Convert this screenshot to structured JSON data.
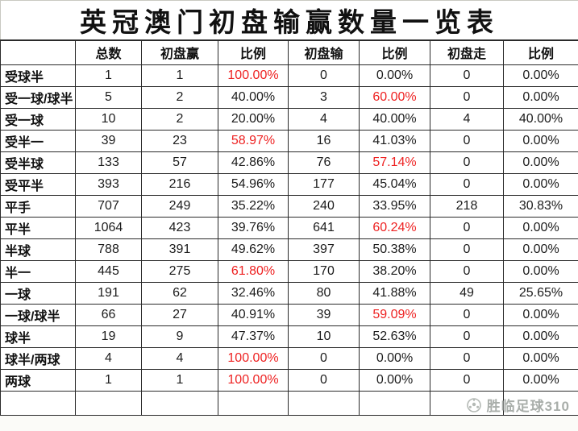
{
  "title": "英冠澳门初盘输赢数量一览表",
  "watermark": {
    "text": "胜临足球310",
    "icon": "soccer-ball-icon"
  },
  "colors": {
    "red": "#ee2222",
    "text": "#1c1c1c",
    "border": "#2a2a2a",
    "background": "#ffffff"
  },
  "chart_data": {
    "type": "table",
    "title": "英冠澳门初盘输赢数量一览表",
    "columns": [
      "",
      "总数",
      "初盘赢",
      "比例",
      "初盘输",
      "比例",
      "初盘走",
      "比例"
    ],
    "rows": [
      {
        "label": "受球半",
        "cells": [
          {
            "v": "1"
          },
          {
            "v": "1"
          },
          {
            "v": "100.00%",
            "red": true
          },
          {
            "v": "0"
          },
          {
            "v": "0.00%"
          },
          {
            "v": "0"
          },
          {
            "v": "0.00%"
          }
        ]
      },
      {
        "label": "受一球/球半",
        "cells": [
          {
            "v": "5"
          },
          {
            "v": "2"
          },
          {
            "v": "40.00%"
          },
          {
            "v": "3"
          },
          {
            "v": "60.00%",
            "red": true
          },
          {
            "v": "0"
          },
          {
            "v": "0.00%"
          }
        ]
      },
      {
        "label": "受一球",
        "cells": [
          {
            "v": "10"
          },
          {
            "v": "2"
          },
          {
            "v": "20.00%"
          },
          {
            "v": "4"
          },
          {
            "v": "40.00%"
          },
          {
            "v": "4"
          },
          {
            "v": "40.00%"
          }
        ]
      },
      {
        "label": "受半一",
        "cells": [
          {
            "v": "39"
          },
          {
            "v": "23"
          },
          {
            "v": "58.97%",
            "red": true
          },
          {
            "v": "16"
          },
          {
            "v": "41.03%"
          },
          {
            "v": "0"
          },
          {
            "v": "0.00%"
          }
        ]
      },
      {
        "label": "受半球",
        "cells": [
          {
            "v": "133"
          },
          {
            "v": "57"
          },
          {
            "v": "42.86%"
          },
          {
            "v": "76"
          },
          {
            "v": "57.14%",
            "red": true
          },
          {
            "v": "0"
          },
          {
            "v": "0.00%"
          }
        ]
      },
      {
        "label": "受平半",
        "cells": [
          {
            "v": "393"
          },
          {
            "v": "216"
          },
          {
            "v": "54.96%"
          },
          {
            "v": "177"
          },
          {
            "v": "45.04%"
          },
          {
            "v": "0"
          },
          {
            "v": "0.00%"
          }
        ]
      },
      {
        "label": "平手",
        "cells": [
          {
            "v": "707"
          },
          {
            "v": "249"
          },
          {
            "v": "35.22%"
          },
          {
            "v": "240"
          },
          {
            "v": "33.95%"
          },
          {
            "v": "218"
          },
          {
            "v": "30.83%"
          }
        ]
      },
      {
        "label": "平半",
        "cells": [
          {
            "v": "1064"
          },
          {
            "v": "423"
          },
          {
            "v": "39.76%"
          },
          {
            "v": "641"
          },
          {
            "v": "60.24%",
            "red": true
          },
          {
            "v": "0"
          },
          {
            "v": "0.00%"
          }
        ]
      },
      {
        "label": "半球",
        "cells": [
          {
            "v": "788"
          },
          {
            "v": "391"
          },
          {
            "v": "49.62%"
          },
          {
            "v": "397"
          },
          {
            "v": "50.38%"
          },
          {
            "v": "0"
          },
          {
            "v": "0.00%"
          }
        ]
      },
      {
        "label": "半一",
        "cells": [
          {
            "v": "445"
          },
          {
            "v": "275"
          },
          {
            "v": "61.80%",
            "red": true
          },
          {
            "v": "170"
          },
          {
            "v": "38.20%"
          },
          {
            "v": "0"
          },
          {
            "v": "0.00%"
          }
        ]
      },
      {
        "label": "一球",
        "cells": [
          {
            "v": "191"
          },
          {
            "v": "62"
          },
          {
            "v": "32.46%"
          },
          {
            "v": "80"
          },
          {
            "v": "41.88%"
          },
          {
            "v": "49"
          },
          {
            "v": "25.65%"
          }
        ]
      },
      {
        "label": "一球/球半",
        "cells": [
          {
            "v": "66"
          },
          {
            "v": "27"
          },
          {
            "v": "40.91%"
          },
          {
            "v": "39"
          },
          {
            "v": "59.09%",
            "red": true
          },
          {
            "v": "0"
          },
          {
            "v": "0.00%"
          }
        ]
      },
      {
        "label": "球半",
        "cells": [
          {
            "v": "19"
          },
          {
            "v": "9"
          },
          {
            "v": "47.37%"
          },
          {
            "v": "10"
          },
          {
            "v": "52.63%"
          },
          {
            "v": "0"
          },
          {
            "v": "0.00%"
          }
        ]
      },
      {
        "label": "球半/两球",
        "cells": [
          {
            "v": "4"
          },
          {
            "v": "4"
          },
          {
            "v": "100.00%",
            "red": true
          },
          {
            "v": "0"
          },
          {
            "v": "0.00%"
          },
          {
            "v": "0"
          },
          {
            "v": "0.00%"
          }
        ]
      },
      {
        "label": "两球",
        "cells": [
          {
            "v": "1"
          },
          {
            "v": "1"
          },
          {
            "v": "100.00%",
            "red": true
          },
          {
            "v": "0"
          },
          {
            "v": "0.00%"
          },
          {
            "v": "0"
          },
          {
            "v": "0.00%"
          }
        ]
      },
      {
        "label": "",
        "cells": [
          {
            "v": ""
          },
          {
            "v": ""
          },
          {
            "v": ""
          },
          {
            "v": ""
          },
          {
            "v": ""
          },
          {
            "v": ""
          },
          {
            "v": ""
          }
        ]
      }
    ]
  }
}
